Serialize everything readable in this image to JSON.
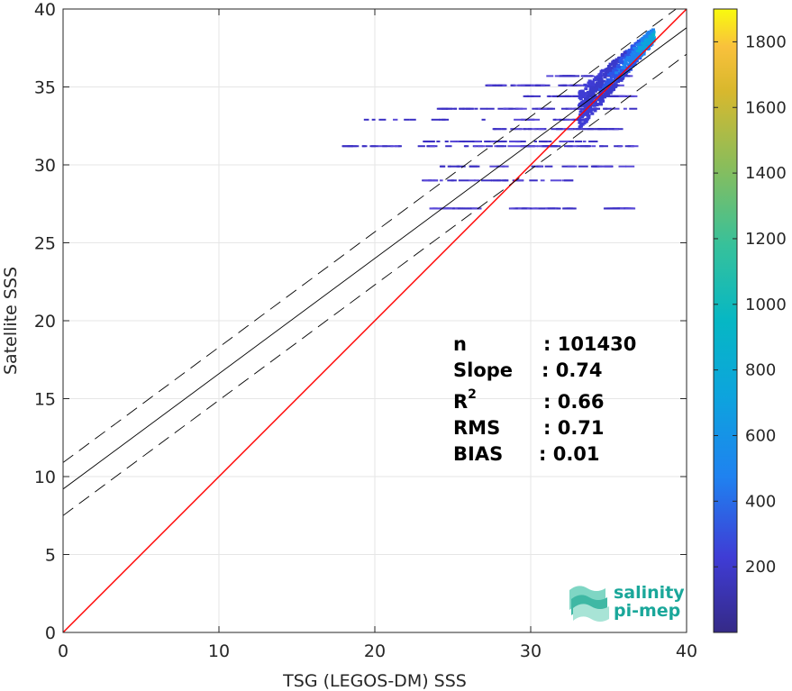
{
  "chart_data": {
    "type": "heatmap",
    "xlabel": "TSG (LEGOS-DM) SSS",
    "ylabel": "Satellite SSS",
    "xlim": [
      0,
      40
    ],
    "ylim": [
      0,
      40
    ],
    "xticks": [
      0,
      10,
      20,
      30,
      40
    ],
    "yticks": [
      0,
      5,
      10,
      15,
      20,
      25,
      30,
      35,
      40
    ],
    "grid": true,
    "colorbar": {
      "range": [
        0,
        1900
      ],
      "ticks": [
        200,
        400,
        600,
        800,
        1000,
        1200,
        1400,
        1600,
        1800
      ],
      "colormap": "parula"
    },
    "lines": [
      {
        "kind": "one-to-one",
        "intercept": 0,
        "slope": 1,
        "color": "#ff0000",
        "style": "solid"
      },
      {
        "kind": "regression",
        "intercept": 9.2,
        "slope": 0.74,
        "color": "#000000",
        "style": "solid"
      },
      {
        "kind": "regression-upper",
        "intercept": 10.9,
        "slope": 0.74,
        "color": "#000000",
        "style": "dashed"
      },
      {
        "kind": "regression-lower",
        "intercept": 7.5,
        "slope": 0.74,
        "color": "#000000",
        "style": "dashed"
      }
    ],
    "density_streaks": [
      {
        "y": 27.2,
        "x0": 23.5,
        "x1": 26.5,
        "count": 40
      },
      {
        "y": 27.2,
        "x0": 28.5,
        "x1": 32.5,
        "count": 45
      },
      {
        "y": 27.2,
        "x0": 34.5,
        "x1": 36.2,
        "count": 40
      },
      {
        "y": 29.0,
        "x0": 23.0,
        "x1": 32.5,
        "count": 25
      },
      {
        "y": 29.9,
        "x0": 22.5,
        "x1": 36.5,
        "count": 30
      },
      {
        "y": 31.2,
        "x0": 17.5,
        "x1": 36.5,
        "count": 60
      },
      {
        "y": 31.5,
        "x0": 23.0,
        "x1": 34.0,
        "count": 35
      },
      {
        "y": 32.3,
        "x0": 27.5,
        "x1": 35.5,
        "count": 40
      },
      {
        "y": 32.9,
        "x0": 18.5,
        "x1": 34.0,
        "count": 25
      },
      {
        "y": 33.6,
        "x0": 23.8,
        "x1": 36.5,
        "count": 45
      },
      {
        "y": 34.4,
        "x0": 29.5,
        "x1": 36.5,
        "count": 50
      },
      {
        "y": 35.1,
        "x0": 27.0,
        "x1": 35.5,
        "count": 45
      },
      {
        "y": 35.7,
        "x0": 31.0,
        "x1": 36.0,
        "count": 40
      }
    ],
    "stats": {
      "n_label": "n",
      "n_value": ": 101430",
      "slope_label": "Slope",
      "slope_value": ": 0.74",
      "r2_base": "R",
      "r2_exp": "2",
      "r2_value": ": 0.66",
      "rms_label": "RMS",
      "rms_value": ": 0.71",
      "bias_label": "BIAS",
      "bias_value": ": 0.01"
    }
  },
  "logo": {
    "line1": "salinity",
    "line2": "pi-mep"
  }
}
